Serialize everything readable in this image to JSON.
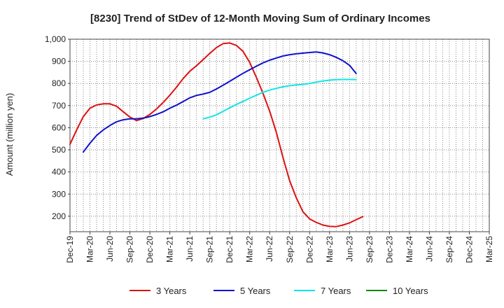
{
  "chart_data": {
    "type": "line",
    "title": "[8230]  Trend of StDev of 12-Month Moving Sum of Ordinary Incomes",
    "xlabel": "",
    "ylabel": "Amount (million yen)",
    "ylim": [
      130,
      1000
    ],
    "y_ticks": [
      200,
      300,
      400,
      500,
      600,
      700,
      800,
      900,
      1000
    ],
    "y_tick_labels": [
      "200",
      "300",
      "400",
      "500",
      "600",
      "700",
      "800",
      "900",
      "1,000"
    ],
    "x_tick_labels": [
      "Dec-19",
      "Mar-20",
      "Jun-20",
      "Sep-20",
      "Dec-20",
      "Mar-21",
      "Jun-21",
      "Sep-21",
      "Dec-21",
      "Mar-22",
      "Jun-22",
      "Sep-22",
      "Dec-22",
      "Mar-23",
      "Jun-23",
      "Sep-23",
      "Dec-23",
      "Mar-24",
      "Jun-24",
      "Sep-24",
      "Dec-24",
      "Mar-25"
    ],
    "grid": true,
    "legend_position": "bottom",
    "series": [
      {
        "name": "3 Years",
        "color": "#dd1111",
        "points": [
          [
            0,
            525
          ],
          [
            1,
            590
          ],
          [
            2,
            650
          ],
          [
            3,
            688
          ],
          [
            4,
            703
          ],
          [
            5,
            708
          ],
          [
            6,
            708
          ],
          [
            7,
            697
          ],
          [
            8,
            672
          ],
          [
            9,
            648
          ],
          [
            10,
            632
          ],
          [
            11,
            642
          ],
          [
            12,
            660
          ],
          [
            13,
            685
          ],
          [
            14,
            714
          ],
          [
            15,
            747
          ],
          [
            16,
            783
          ],
          [
            17,
            822
          ],
          [
            18,
            855
          ],
          [
            19,
            880
          ],
          [
            20,
            908
          ],
          [
            21,
            936
          ],
          [
            22,
            962
          ],
          [
            23,
            980
          ],
          [
            24,
            983
          ],
          [
            25,
            972
          ],
          [
            26,
            945
          ],
          [
            27,
            895
          ],
          [
            28,
            828
          ],
          [
            29,
            755
          ],
          [
            30,
            675
          ],
          [
            31,
            580
          ],
          [
            32,
            465
          ],
          [
            33,
            360
          ],
          [
            34,
            283
          ],
          [
            35,
            220
          ],
          [
            36,
            188
          ],
          [
            37,
            172
          ],
          [
            38,
            160
          ],
          [
            39,
            154
          ],
          [
            40,
            153
          ],
          [
            41,
            160
          ],
          [
            42,
            170
          ],
          [
            43,
            184
          ],
          [
            44,
            198
          ]
        ]
      },
      {
        "name": "5 Years",
        "color": "#1111cc",
        "points": [
          [
            2,
            490
          ],
          [
            3,
            530
          ],
          [
            4,
            565
          ],
          [
            5,
            590
          ],
          [
            6,
            610
          ],
          [
            7,
            627
          ],
          [
            8,
            636
          ],
          [
            9,
            640
          ],
          [
            10,
            640
          ],
          [
            11,
            643
          ],
          [
            12,
            650
          ],
          [
            13,
            660
          ],
          [
            14,
            672
          ],
          [
            15,
            688
          ],
          [
            16,
            702
          ],
          [
            17,
            718
          ],
          [
            18,
            735
          ],
          [
            19,
            746
          ],
          [
            20,
            752
          ],
          [
            21,
            760
          ],
          [
            22,
            775
          ],
          [
            23,
            792
          ],
          [
            24,
            810
          ],
          [
            25,
            828
          ],
          [
            26,
            846
          ],
          [
            27,
            862
          ],
          [
            28,
            878
          ],
          [
            29,
            893
          ],
          [
            30,
            905
          ],
          [
            31,
            915
          ],
          [
            32,
            924
          ],
          [
            33,
            930
          ],
          [
            34,
            934
          ],
          [
            35,
            937
          ],
          [
            36,
            940
          ],
          [
            37,
            942
          ],
          [
            38,
            938
          ],
          [
            39,
            930
          ],
          [
            40,
            918
          ],
          [
            41,
            903
          ],
          [
            42,
            882
          ],
          [
            43,
            845
          ]
        ]
      },
      {
        "name": "7 Years",
        "color": "#11e5e5",
        "points": [
          [
            20,
            640
          ],
          [
            21,
            648
          ],
          [
            22,
            658
          ],
          [
            23,
            674
          ],
          [
            24,
            690
          ],
          [
            25,
            705
          ],
          [
            26,
            719
          ],
          [
            27,
            733
          ],
          [
            28,
            747
          ],
          [
            29,
            760
          ],
          [
            30,
            770
          ],
          [
            31,
            778
          ],
          [
            32,
            785
          ],
          [
            33,
            790
          ],
          [
            34,
            793
          ],
          [
            35,
            796
          ],
          [
            36,
            800
          ],
          [
            37,
            806
          ],
          [
            38,
            811
          ],
          [
            39,
            815
          ],
          [
            40,
            817
          ],
          [
            41,
            818
          ],
          [
            42,
            818
          ],
          [
            43,
            817
          ]
        ]
      },
      {
        "name": "10 Years",
        "color": "#118811",
        "points": []
      }
    ]
  }
}
